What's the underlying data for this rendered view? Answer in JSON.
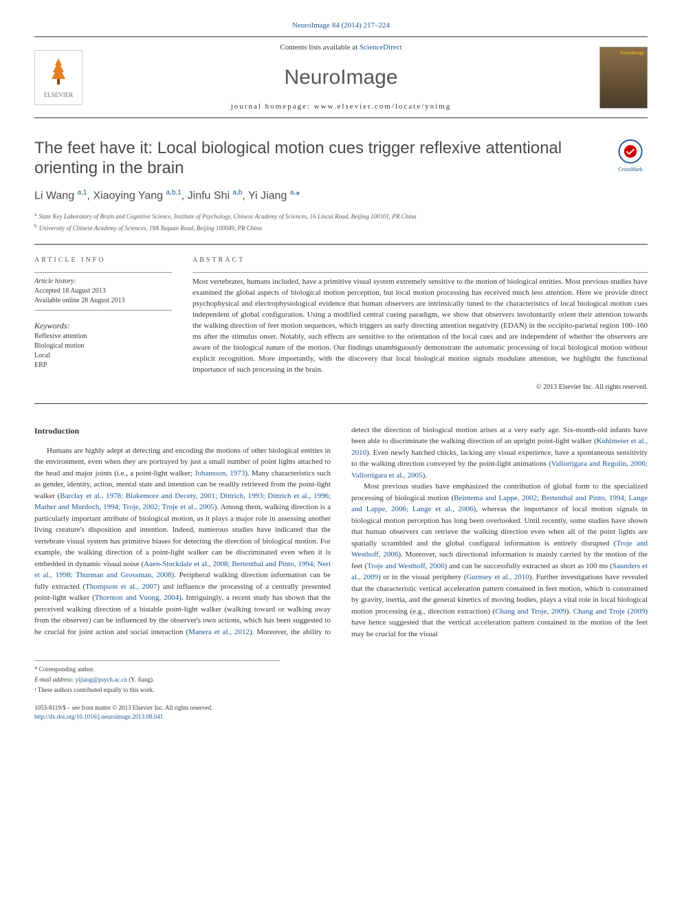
{
  "header": {
    "citation_link": "NeuroImage 84 (2014) 217–224",
    "contents_prefix": "Contents lists available at ",
    "contents_link": "ScienceDirect",
    "journal_name": "NeuroImage",
    "homepage_prefix": "journal homepage: ",
    "homepage_url": "www.elsevier.com/locate/ynimg",
    "publisher_name": "ELSEVIER",
    "crossmark_label": "CrossMark"
  },
  "article": {
    "title": "The feet have it: Local biological motion cues trigger reflexive attentional orienting in the brain",
    "authors_html": "Li Wang <sup>a,1</sup>, Xiaoying Yang <sup>a,b,1</sup>, Jinfu Shi <sup>a,b</sup>, Yi Jiang <sup>a,</sup><span class='star'>*</span>",
    "affiliations": [
      {
        "sup": "a",
        "text": "State Key Laboratory of Brain and Cognitive Science, Institute of Psychology, Chinese Academy of Sciences, 16 Lincui Road, Beijing 100101, PR China"
      },
      {
        "sup": "b",
        "text": "University of Chinese Academy of Sciences, 19A Yuquan Road, Beijing 100049, PR China"
      }
    ]
  },
  "article_info": {
    "heading": "ARTICLE INFO",
    "history_label": "Article history:",
    "accepted": "Accepted 18 August 2013",
    "available": "Available online 28 August 2013",
    "keywords_label": "Keywords:",
    "keywords": [
      "Reflexive attention",
      "Biological motion",
      "Local",
      "ERP"
    ]
  },
  "abstract": {
    "heading": "ABSTRACT",
    "text": "Most vertebrates, humans included, have a primitive visual system extremely sensitive to the motion of biological entities. Most previous studies have examined the global aspects of biological motion perception, but local motion processing has received much less attention. Here we provide direct psychophysical and electrophysiological evidence that human observers are intrinsically tuned to the characteristics of local biological motion cues independent of global configuration. Using a modified central cueing paradigm, we show that observers involuntarily orient their attention towards the walking direction of feet motion sequences, which triggers an early directing attention negativity (EDAN) in the occipito-parietal region 100–160 ms after the stimulus onset. Notably, such effects are sensitive to the orientation of the local cues and are independent of whether the observers are aware of the biological nature of the motion. Our findings unambiguously demonstrate the automatic processing of local biological motion without explicit recognition. More importantly, with the discovery that local biological motion signals modulate attention, we highlight the functional importance of such processing in the brain.",
    "copyright": "© 2013 Elsevier Inc. All rights reserved."
  },
  "body": {
    "intro_heading": "Introduction",
    "para1_pre": "Humans are highly adept at detecting and encoding the motions of other biological entities in the environment, even when they are portrayed by just a small number of point lights attached to the head and major joints (i.e., a point-light walker; ",
    "cite1": "Johansson, 1973",
    "para1_mid1": "). Many characteristics such as gender, identity, action, mental state and intention can be readily retrieved from the point-light walker (",
    "cite2": "Barclay et al., 1978; Blakemore and Decety, 2001; Dittrich, 1993; Dittrich et al., 1996; Mather and Murdoch, 1994; Troje, 2002; Troje et al., 2005",
    "para1_mid2": "). Among them, walking direction is a particularly important attribute of biological motion, as it plays a major role in assessing another living creature's disposition and intention. Indeed, numerous studies have indicated that the vertebrate visual system has primitive biases for detecting the direction of biological motion. For example, the walking direction of a point-light walker can be discriminated even when it is embedded in dynamic visual noise (",
    "cite3": "Aaen-Stockdale et al., 2008; Bertenthal and Pinto, 1994; Neri et al., 1998; Thurman and Grossman, 2008",
    "para1_mid3": "). Peripheral walking direction information can be fully extracted (",
    "cite4": "Thompson et al., 2007",
    "para1_mid4": ") and influence the processing of a centrally presented point-light walker (",
    "cite5": "Thornton and Vuong, 2004",
    "para1_mid5": "). Intriguingly, a recent study has shown that the perceived walking direction of a bistable point-light walker (walking toward or walking away from the ",
    "para1_col2_start": "observer) can be influenced by the observer's own actions, which has been suggested to be crucial for joint action and social interaction (",
    "cite6": "Manera et al., 2012",
    "para1_mid6": "). Moreover, the ability to detect the direction of biological motion arises at a very early age. Six-month-old infants have been able to discriminate the walking direction of an upright point-light walker (",
    "cite7": "Kuhlmeier et al., 2010",
    "para1_mid7": "). Even newly hatched chicks, lacking any visual experience, have a spontaneous sensitivity to the walking direction conveyed by the point-light animations (",
    "cite8": "Vallortigara and Regolin, 2006; Vallortigara et al., 2005",
    "para1_end": ").",
    "para2_pre": "Most previous studies have emphasized the contribution of global form to the specialized processing of biological motion (",
    "cite9": "Beintema and Lappe, 2002; Bertenthal and Pinto, 1994; Lange and Lappe, 2006; Lange et al., 2006",
    "para2_mid1": "), whereas the importance of local motion signals in biological motion perception has long been overlooked. Until recently, some studies have shown that human observers can retrieve the walking direction even when all of the point lights are spatially scrambled and the global configural information is entirely disrupted (",
    "cite10": "Troje and Westhoff, 2006",
    "para2_mid2": "). Moreover, such directional information is mainly carried by the motion of the feet (",
    "cite11": "Troje and Westhoff, 2006",
    "para2_mid3": ") and can be successfully extracted as short as 100 ms (",
    "cite12": "Saunders et al., 2009",
    "para2_mid4": ") or in the visual periphery (",
    "cite13": "Gurnsey et al., 2010",
    "para2_mid5": "). Further investigations have revealed that the characteristic vertical acceleration pattern contained in feet motion, which is constrained by gravity, inertia, and the general kinetics of moving bodies, plays a vital role in local biological motion processing (e.g., direction extraction) (",
    "cite14": "Chang and Troje, 2009",
    "para2_mid6": "). ",
    "cite15": "Chang and Troje (2009)",
    "para2_end": " have hence suggested that the vertical acceleration pattern contained in the motion of the feet may be crucial for the visual"
  },
  "footer": {
    "corresponding": "* Corresponding author.",
    "email_label": "E-mail address: ",
    "email": "yijiang@psych.ac.cn",
    "email_name": " (Y. Jiang).",
    "contrib_note": "¹ These authors contributed equally to this work.",
    "front_matter": "1053-8119/$ – see front matter © 2013 Elsevier Inc. All rights reserved.",
    "doi": "http://dx.doi.org/10.1016/j.neuroimage.2013.08.041"
  },
  "colors": {
    "link": "#1a5490",
    "text": "#333333",
    "heading": "#4a4a4a"
  }
}
